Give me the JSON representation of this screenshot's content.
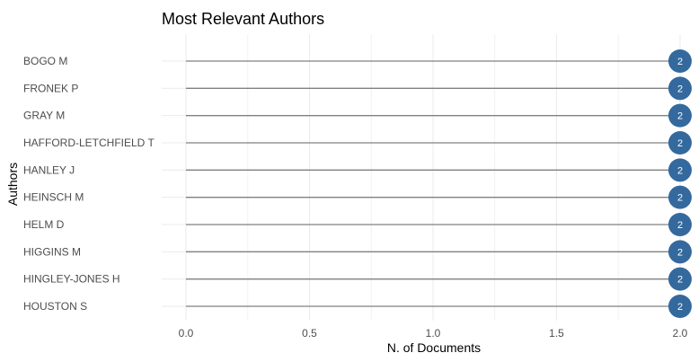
{
  "chart_data": {
    "type": "lollipop",
    "title": "Most Relevant Authors",
    "xlabel": "N. of Documents",
    "ylabel": "Authors",
    "categories": [
      "BOGO M",
      "FRONEK P",
      "GRAY M",
      "HAFFORD-LETCHFIELD T",
      "HANLEY J",
      "HEINSCH M",
      "HELM D",
      "HIGGINS M",
      "HINGLEY-JONES H",
      "HOUSTON S"
    ],
    "values": [
      2,
      2,
      2,
      2,
      2,
      2,
      2,
      2,
      2,
      2
    ],
    "data_labels": [
      "2",
      "2",
      "2",
      "2",
      "2",
      "2",
      "2",
      "2",
      "2",
      "2"
    ],
    "xlim": [
      0,
      2
    ],
    "xticks": [
      0.0,
      0.5,
      1.0,
      1.5,
      2.0
    ],
    "xtick_labels": [
      "0.0",
      "0.5",
      "1.0",
      "1.5",
      "2.0"
    ],
    "grid": true,
    "legend": "none",
    "colors": {
      "point": "#34699d",
      "stem": "#808080",
      "label": "#ffffff"
    }
  }
}
